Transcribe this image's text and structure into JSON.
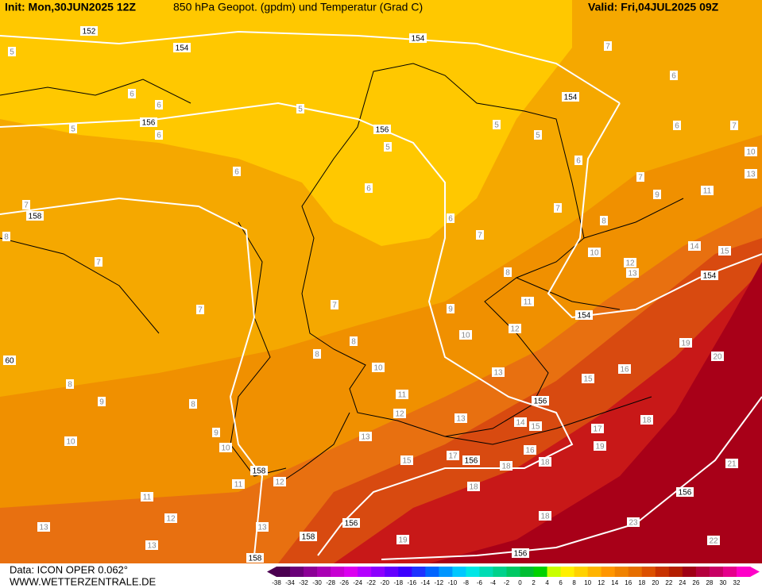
{
  "header": {
    "init": "Init: Mon,30JUN2025 12Z",
    "title": "850 hPa Geopot. (gpdm) und Temperatur (Grad C)",
    "valid": "Valid: Fri,04JUL2025 09Z"
  },
  "footer": {
    "data_source": "Data: ICON OPER 0.062°",
    "website": "WWW.WETTERZENTRALE.DE"
  },
  "color_scale": {
    "labels": [
      -38,
      -34,
      -32,
      -30,
      -28,
      -26,
      -24,
      -22,
      -20,
      -18,
      -16,
      -14,
      -12,
      -10,
      -8,
      -6,
      -4,
      -2,
      0,
      2,
      4,
      6,
      8,
      10,
      12,
      14,
      16,
      18,
      20,
      22,
      24,
      26,
      28,
      30,
      32
    ],
    "colors": [
      "#4b0050",
      "#6a0078",
      "#8c0096",
      "#aa00b4",
      "#c800d2",
      "#dc00f0",
      "#b400ff",
      "#8c00ff",
      "#6400ff",
      "#3c00ff",
      "#1e32ff",
      "#0064ff",
      "#0096ff",
      "#00c8ff",
      "#00e6e6",
      "#00dcb4",
      "#00d28c",
      "#00c864",
      "#00be32",
      "#00d200",
      "#c8ff00",
      "#fff000",
      "#ffd200",
      "#ffb400",
      "#ff9600",
      "#f08200",
      "#e66e00",
      "#dc5000",
      "#c83200",
      "#b41e00",
      "#a00014",
      "#b4003c",
      "#c80064",
      "#e6008c",
      "#ff00c8"
    ]
  },
  "isotherm_labels": [
    5,
    6,
    6,
    5,
    6,
    5,
    6,
    7,
    8,
    7,
    7,
    6,
    5,
    5,
    5,
    6,
    7,
    6,
    6,
    7,
    10,
    13,
    7,
    9,
    11,
    7,
    8,
    7,
    6,
    10,
    12,
    13,
    14,
    15,
    8,
    11,
    9,
    12,
    10,
    7,
    8,
    8,
    10,
    13,
    16,
    19,
    20,
    15,
    11,
    12,
    13,
    14,
    15,
    17,
    18,
    19,
    13,
    16,
    18,
    18,
    15,
    17,
    12,
    11,
    9,
    10,
    8,
    9,
    8,
    10,
    11,
    12,
    13,
    13,
    13,
    19,
    18,
    18,
    21,
    23,
    22
  ],
  "geopotential_labels": [
    152,
    154,
    154,
    156,
    156,
    154,
    158,
    154,
    154,
    156,
    156,
    158,
    156,
    156,
    158,
    156,
    158,
    60
  ]
}
